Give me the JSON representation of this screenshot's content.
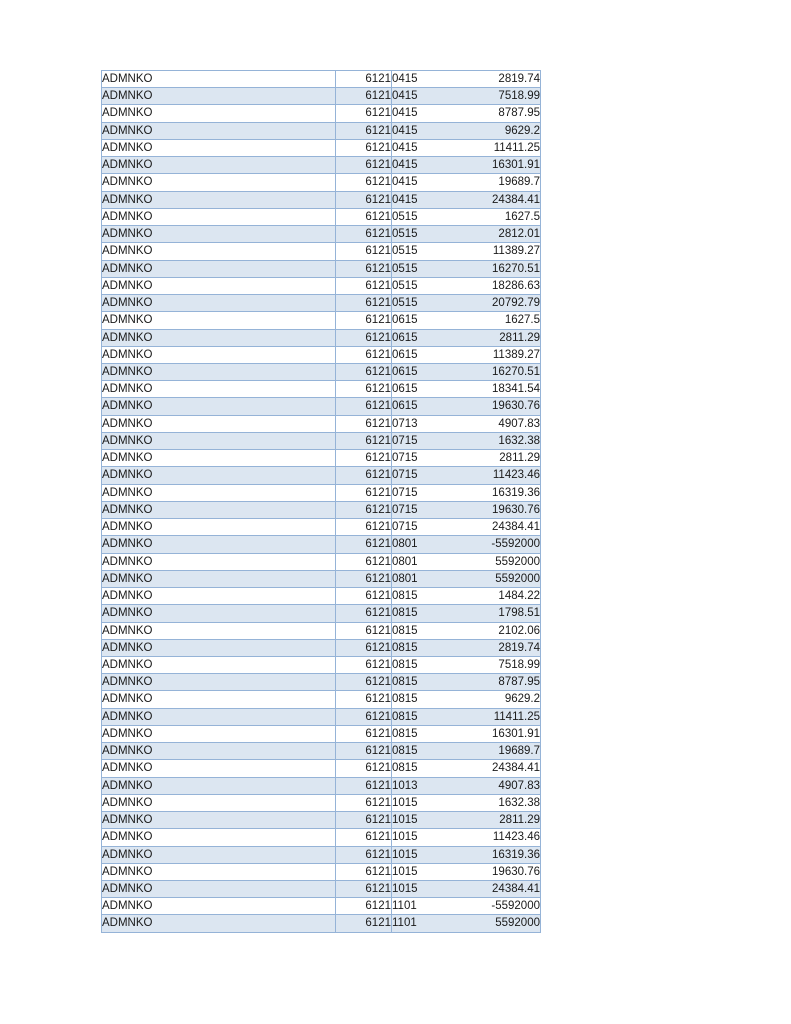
{
  "page": {
    "background": "#ffffff"
  },
  "table": {
    "colors": {
      "band": "#dce6f1",
      "border": "#95b3d7",
      "text": "#1a1a1a"
    },
    "columns": [
      {
        "key": "col1",
        "align": "left"
      },
      {
        "key": "col2",
        "align": "right"
      },
      {
        "key": "col3",
        "align": "left"
      },
      {
        "key": "col4",
        "align": "right"
      }
    ],
    "rows": [
      [
        "ADMNKO",
        "6121",
        "0415",
        "2819.74"
      ],
      [
        "ADMNKO",
        "6121",
        "0415",
        "7518.99"
      ],
      [
        "ADMNKO",
        "6121",
        "0415",
        "8787.95"
      ],
      [
        "ADMNKO",
        "6121",
        "0415",
        "9629.2"
      ],
      [
        "ADMNKO",
        "6121",
        "0415",
        "11411.25"
      ],
      [
        "ADMNKO",
        "6121",
        "0415",
        "16301.91"
      ],
      [
        "ADMNKO",
        "6121",
        "0415",
        "19689.7"
      ],
      [
        "ADMNKO",
        "6121",
        "0415",
        "24384.41"
      ],
      [
        "ADMNKO",
        "6121",
        "0515",
        "1627.5"
      ],
      [
        "ADMNKO",
        "6121",
        "0515",
        "2812.01"
      ],
      [
        "ADMNKO",
        "6121",
        "0515",
        "11389.27"
      ],
      [
        "ADMNKO",
        "6121",
        "0515",
        "16270.51"
      ],
      [
        "ADMNKO",
        "6121",
        "0515",
        "18286.63"
      ],
      [
        "ADMNKO",
        "6121",
        "0515",
        "20792.79"
      ],
      [
        "ADMNKO",
        "6121",
        "0615",
        "1627.5"
      ],
      [
        "ADMNKO",
        "6121",
        "0615",
        "2811.29"
      ],
      [
        "ADMNKO",
        "6121",
        "0615",
        "11389.27"
      ],
      [
        "ADMNKO",
        "6121",
        "0615",
        "16270.51"
      ],
      [
        "ADMNKO",
        "6121",
        "0615",
        "18341.54"
      ],
      [
        "ADMNKO",
        "6121",
        "0615",
        "19630.76"
      ],
      [
        "ADMNKO",
        "6121",
        "0713",
        "4907.83"
      ],
      [
        "ADMNKO",
        "6121",
        "0715",
        "1632.38"
      ],
      [
        "ADMNKO",
        "6121",
        "0715",
        "2811.29"
      ],
      [
        "ADMNKO",
        "6121",
        "0715",
        "11423.46"
      ],
      [
        "ADMNKO",
        "6121",
        "0715",
        "16319.36"
      ],
      [
        "ADMNKO",
        "6121",
        "0715",
        "19630.76"
      ],
      [
        "ADMNKO",
        "6121",
        "0715",
        "24384.41"
      ],
      [
        "ADMNKO",
        "6121",
        "0801",
        "-5592000"
      ],
      [
        "ADMNKO",
        "6121",
        "0801",
        "5592000"
      ],
      [
        "ADMNKO",
        "6121",
        "0801",
        "5592000"
      ],
      [
        "ADMNKO",
        "6121",
        "0815",
        "1484.22"
      ],
      [
        "ADMNKO",
        "6121",
        "0815",
        "1798.51"
      ],
      [
        "ADMNKO",
        "6121",
        "0815",
        "2102.06"
      ],
      [
        "ADMNKO",
        "6121",
        "0815",
        "2819.74"
      ],
      [
        "ADMNKO",
        "6121",
        "0815",
        "7518.99"
      ],
      [
        "ADMNKO",
        "6121",
        "0815",
        "8787.95"
      ],
      [
        "ADMNKO",
        "6121",
        "0815",
        "9629.2"
      ],
      [
        "ADMNKO",
        "6121",
        "0815",
        "11411.25"
      ],
      [
        "ADMNKO",
        "6121",
        "0815",
        "16301.91"
      ],
      [
        "ADMNKO",
        "6121",
        "0815",
        "19689.7"
      ],
      [
        "ADMNKO",
        "6121",
        "0815",
        "24384.41"
      ],
      [
        "ADMNKO",
        "6121",
        "1013",
        "4907.83"
      ],
      [
        "ADMNKO",
        "6121",
        "1015",
        "1632.38"
      ],
      [
        "ADMNKO",
        "6121",
        "1015",
        "2811.29"
      ],
      [
        "ADMNKO",
        "6121",
        "1015",
        "11423.46"
      ],
      [
        "ADMNKO",
        "6121",
        "1015",
        "16319.36"
      ],
      [
        "ADMNKO",
        "6121",
        "1015",
        "19630.76"
      ],
      [
        "ADMNKO",
        "6121",
        "1015",
        "24384.41"
      ],
      [
        "ADMNKO",
        "6121",
        "1101",
        "-5592000"
      ],
      [
        "ADMNKO",
        "6121",
        "1101",
        "5592000"
      ]
    ]
  }
}
